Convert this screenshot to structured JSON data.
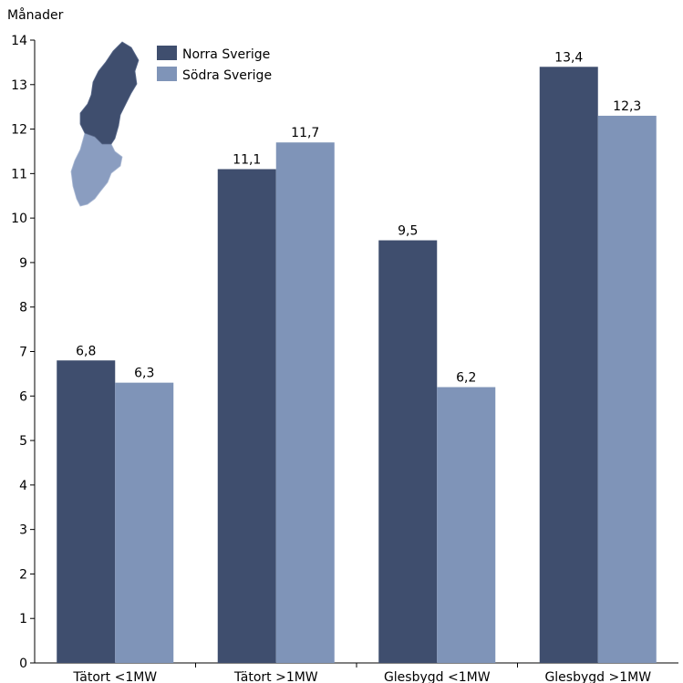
{
  "chart_data": {
    "type": "bar",
    "title": "",
    "xlabel": "",
    "ylabel": "Månader",
    "ylim": [
      0,
      14
    ],
    "yticks": [
      0,
      1,
      2,
      3,
      4,
      5,
      6,
      7,
      8,
      9,
      10,
      11,
      12,
      13,
      14
    ],
    "grid": false,
    "legend_position": "top-left",
    "categories": [
      "Tätort <1MW",
      "Tätort >1MW",
      "Glesbygd <1MW",
      "Glesbygd >1MW"
    ],
    "series": [
      {
        "name": "Norra Sverige",
        "color": "#3f4e6e",
        "values": [
          6.8,
          11.1,
          9.5,
          13.4
        ],
        "labels": [
          "6,8",
          "11,1",
          "9,5",
          "13,4"
        ]
      },
      {
        "name": "Södra Sverige",
        "color": "#7f94b8",
        "values": [
          6.3,
          11.7,
          6.2,
          12.3
        ],
        "labels": [
          "6,3",
          "11,7",
          "6,2",
          "12,3"
        ]
      }
    ],
    "map_icon": "sweden-map-icon"
  }
}
